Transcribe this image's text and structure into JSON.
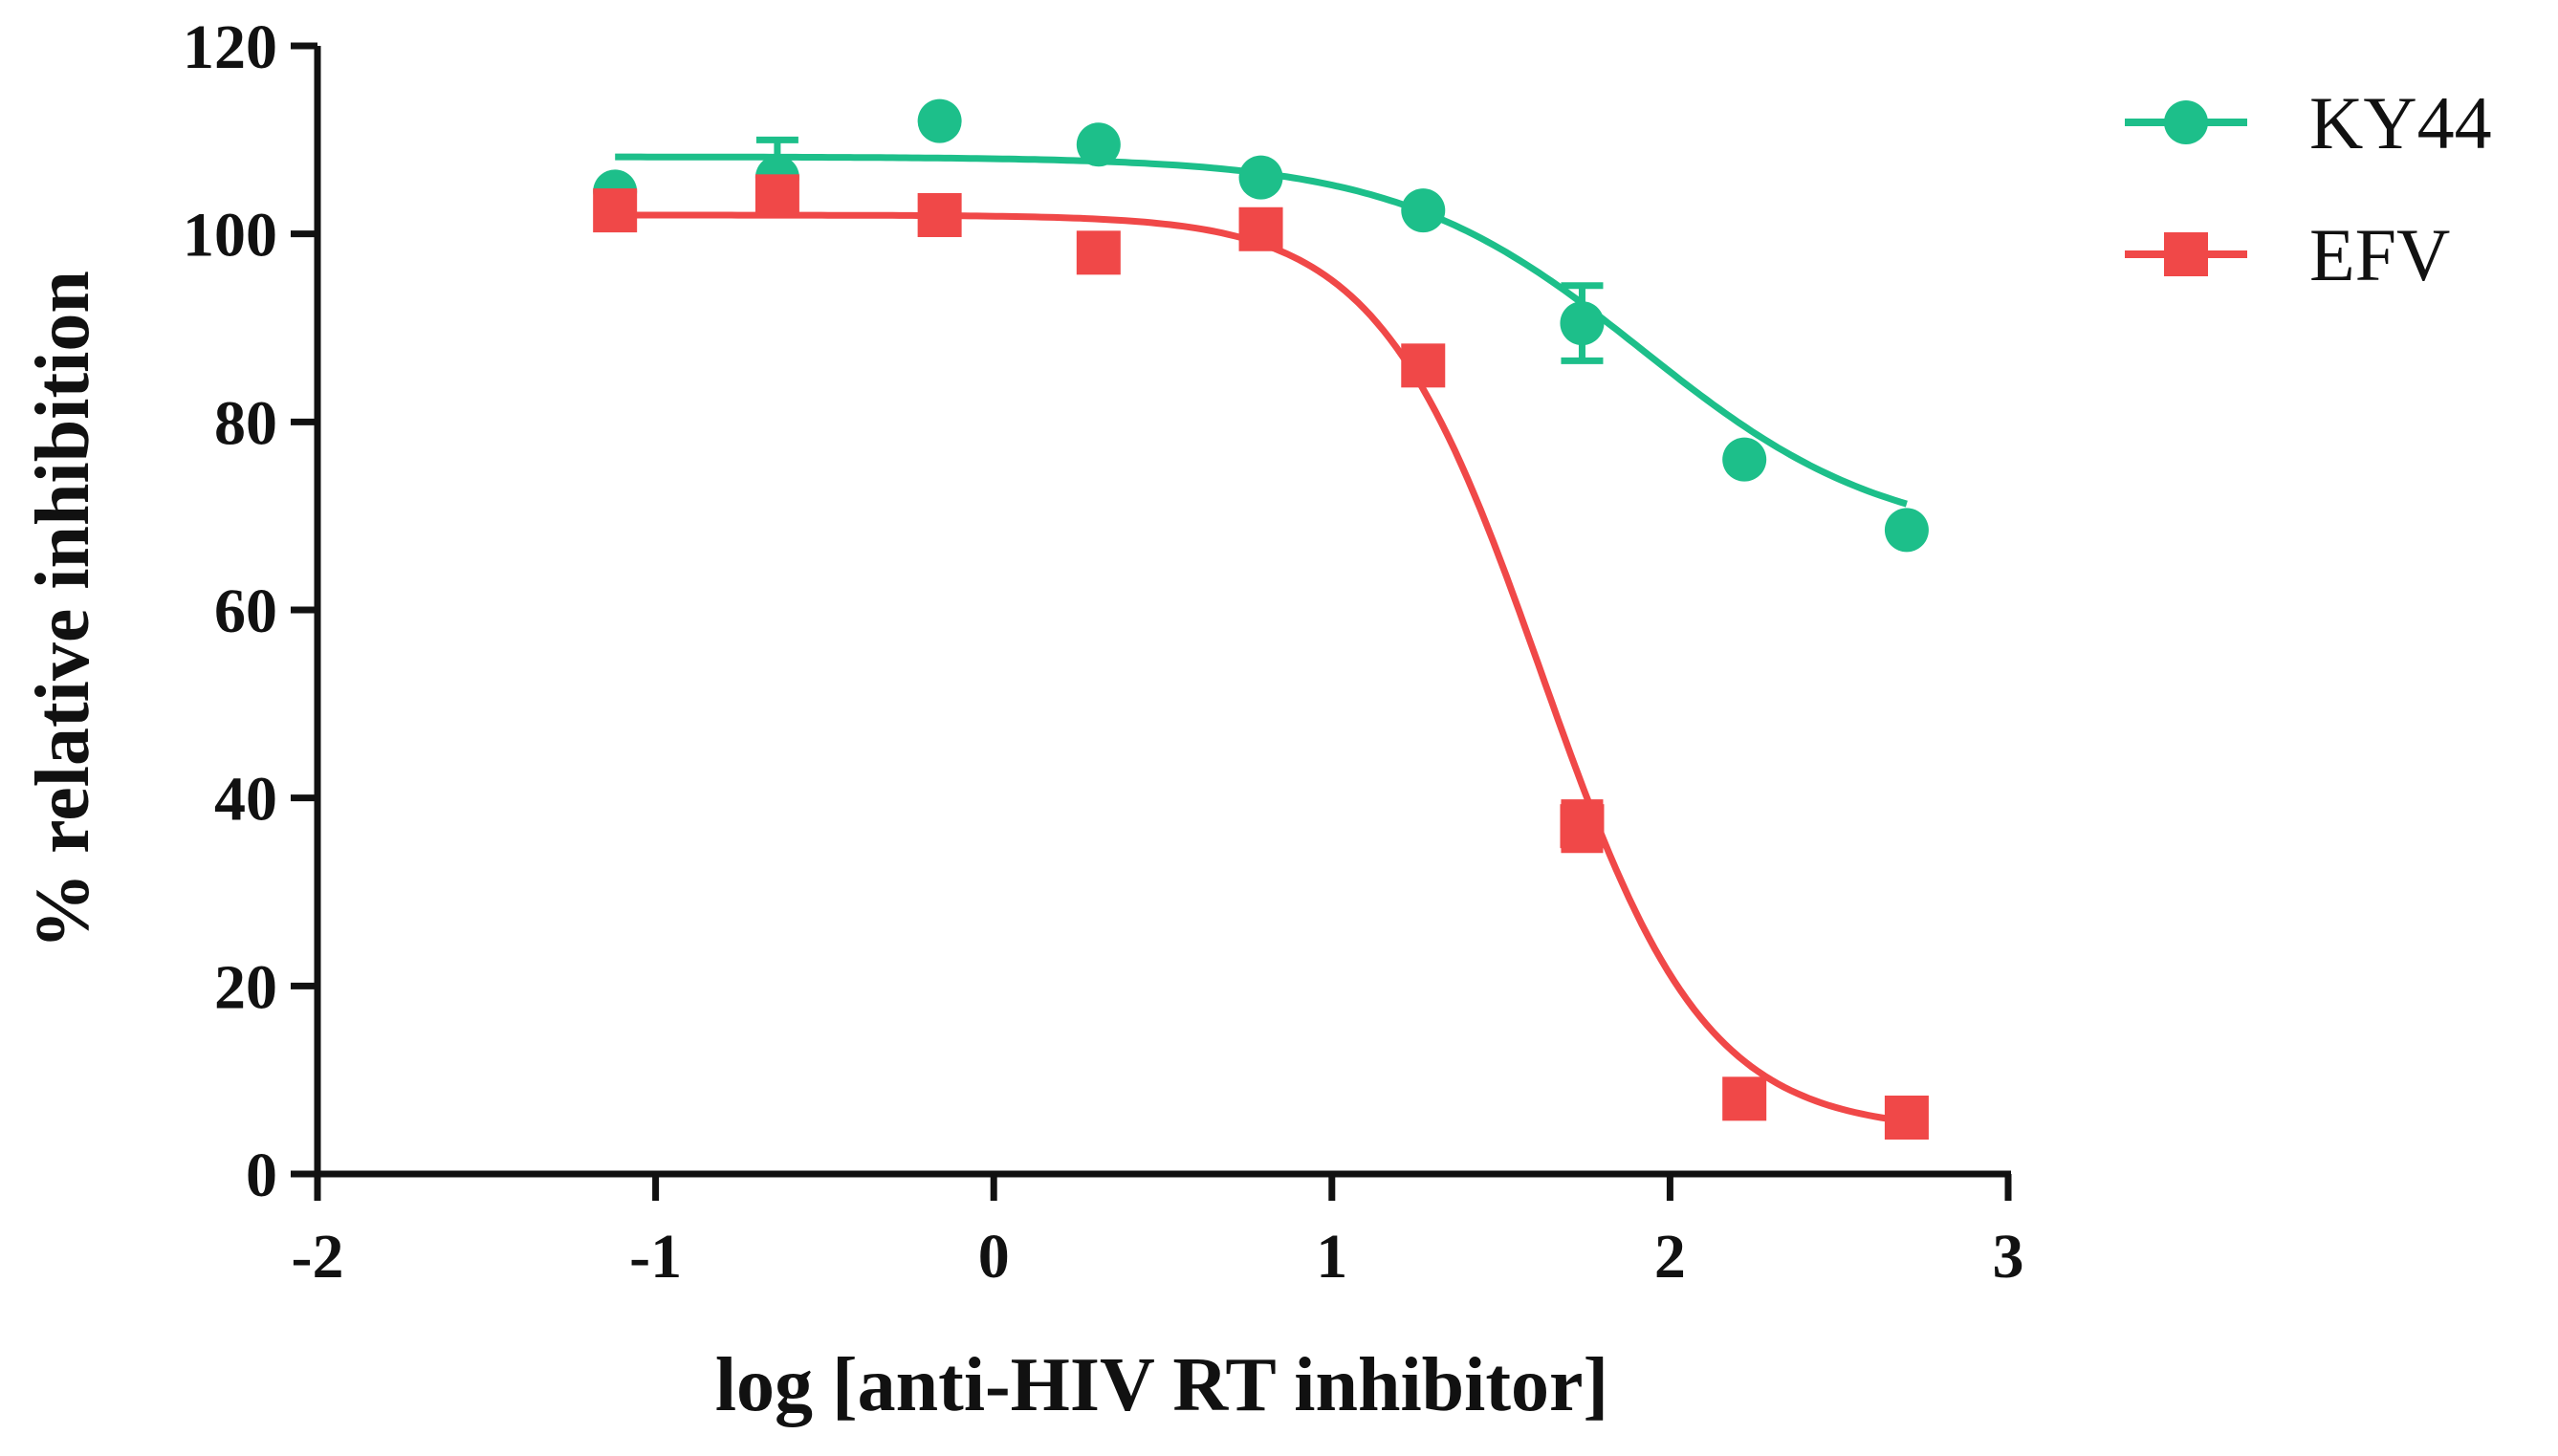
{
  "chart_data": {
    "type": "line",
    "title": "",
    "xlabel": "log [anti-HIV RT inhibitor]",
    "ylabel": "% relative inhibition",
    "xlim": [
      -2,
      3
    ],
    "ylim": [
      0,
      120
    ],
    "x_ticks": [
      -2,
      -1,
      0,
      1,
      2,
      3
    ],
    "x_tick_labels": [
      "-2",
      "-1",
      "0",
      "1",
      "2",
      "3"
    ],
    "y_ticks": [
      0,
      20,
      40,
      60,
      80,
      100,
      120
    ],
    "y_tick_labels": [
      "0",
      "20",
      "40",
      "60",
      "80",
      "100",
      "120"
    ],
    "grid": false,
    "legend_position": "top-right",
    "series": [
      {
        "name": "KY44",
        "color": "#1dbf8a",
        "marker": "circle",
        "x": [
          -1.12,
          -0.64,
          -0.16,
          0.31,
          0.79,
          1.27,
          1.74,
          2.22,
          2.7
        ],
        "y": [
          104.5,
          106,
          112,
          109.5,
          106,
          102.5,
          90.5,
          76,
          68.5
        ],
        "err": [
          0,
          4,
          0,
          0,
          0,
          0,
          4,
          0,
          0
        ],
        "fit": {
          "top": 108.2,
          "bottom": 67,
          "logec50": 1.92,
          "hill": 1.2
        }
      },
      {
        "name": "EFV",
        "color": "#f04848",
        "marker": "square",
        "x": [
          -1.12,
          -0.64,
          -0.16,
          0.31,
          0.79,
          1.27,
          1.74,
          2.22,
          2.7
        ],
        "y": [
          102.5,
          104,
          102,
          98,
          100.5,
          86,
          37,
          8,
          6
        ],
        "err": [
          0,
          0,
          0,
          0,
          0,
          0,
          2.5,
          0,
          0
        ],
        "fit": {
          "top": 102,
          "bottom": 4.5,
          "logec50": 1.62,
          "hill": 1.8
        }
      }
    ]
  }
}
